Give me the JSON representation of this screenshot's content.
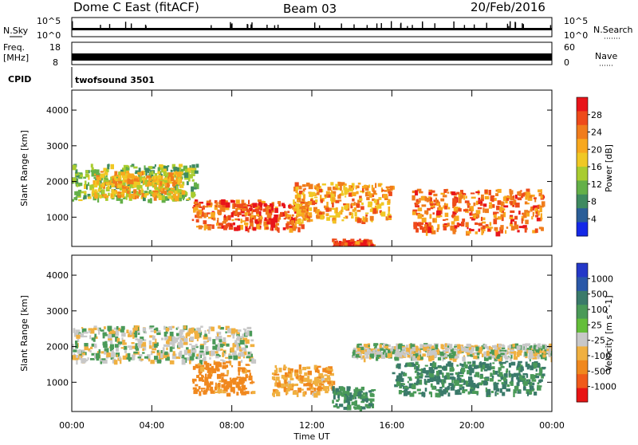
{
  "header": {
    "title": "Dome C East (fitACF)",
    "beam": "Beam 03",
    "date": "20/Feb/2016"
  },
  "noise_panel": {
    "left_label": "N.Sky",
    "right_label": "N.Search",
    "left_ticks": [
      "10^5",
      "10^0"
    ],
    "right_ticks": [
      "10^5",
      "10^0"
    ]
  },
  "freq_panel": {
    "left_label_line1": "Freq.",
    "left_label_line2": "[MHz]",
    "right_label": "Nave",
    "left_ticks": [
      "18",
      "8"
    ],
    "right_ticks": [
      "60",
      "0"
    ]
  },
  "cpid": {
    "label": "CPID",
    "program": "twofsound 3501"
  },
  "axes": {
    "xlabel": "Time UT",
    "ylabel": "Slant Range [km]",
    "x_ticks": [
      "00:00",
      "04:00",
      "08:00",
      "12:00",
      "16:00",
      "20:00",
      "00:00"
    ],
    "y_ticks": [
      "4000",
      "3000",
      "2000",
      "1000"
    ]
  },
  "power_colorbar": {
    "label": "Power [dB]",
    "ticks": [
      "28",
      "24",
      "20",
      "16",
      "12",
      "8",
      "4"
    ],
    "colors": [
      "#e8141a",
      "#ee4a1a",
      "#f07c1c",
      "#f8a81e",
      "#f0c824",
      "#a9cc30",
      "#64b048",
      "#3e8a60",
      "#2a5e98",
      "#1428e8"
    ]
  },
  "velocity_colorbar": {
    "label": "Velocity [m s^-1]",
    "ticks": [
      "1000",
      "500",
      "100",
      "25",
      "-25",
      "-100",
      "-500",
      "-1000"
    ],
    "colors": [
      "#2438c8",
      "#2a58a8",
      "#3a7a6a",
      "#4a9a58",
      "#64be3a",
      "#c8c8c8",
      "#f0b040",
      "#f0881e",
      "#f05a1a",
      "#e81414"
    ]
  },
  "chart_data": [
    {
      "type": "heatmap",
      "title": "Power",
      "xlabel": "Time UT",
      "ylabel": "Slant Range [km]",
      "xlim": [
        0,
        24
      ],
      "ylim": [
        180,
        4560
      ],
      "zlabel": "Power [dB]",
      "zlim": [
        0,
        32
      ],
      "regions": [
        {
          "t": [
            0,
            6.2
          ],
          "r": [
            1500,
            2500
          ],
          "z": 12
        },
        {
          "t": [
            1,
            5.5
          ],
          "r": [
            1600,
            2300
          ],
          "z": 20
        },
        {
          "t": [
            6,
            11.5
          ],
          "r": [
            700,
            1500
          ],
          "z": 27
        },
        {
          "t": [
            11,
            16
          ],
          "r": [
            900,
            2000
          ],
          "z": 22
        },
        {
          "t": [
            13,
            15
          ],
          "r": [
            200,
            400
          ],
          "z": 29
        },
        {
          "t": [
            17,
            23.5
          ],
          "r": [
            600,
            1800
          ],
          "z": 26
        }
      ]
    },
    {
      "type": "heatmap",
      "title": "Velocity",
      "xlabel": "Time UT",
      "ylabel": "Slant Range [km]",
      "xlim": [
        0,
        24
      ],
      "ylim": [
        180,
        4560
      ],
      "zlabel": "Velocity [m s^-1]",
      "zlim": [
        -1000,
        1000
      ],
      "regions": [
        {
          "t": [
            0,
            9
          ],
          "r": [
            1600,
            2600
          ],
          "v": 0
        },
        {
          "t": [
            6,
            9
          ],
          "r": [
            700,
            1600
          ],
          "v": -150
        },
        {
          "t": [
            10,
            13
          ],
          "r": [
            700,
            1500
          ],
          "v": -80
        },
        {
          "t": [
            13,
            15
          ],
          "r": [
            300,
            900
          ],
          "v": 90
        },
        {
          "t": [
            16,
            23.5
          ],
          "r": [
            700,
            1600
          ],
          "v": 110
        },
        {
          "t": [
            14,
            24
          ],
          "r": [
            1700,
            2100
          ],
          "v": 0
        }
      ]
    }
  ]
}
